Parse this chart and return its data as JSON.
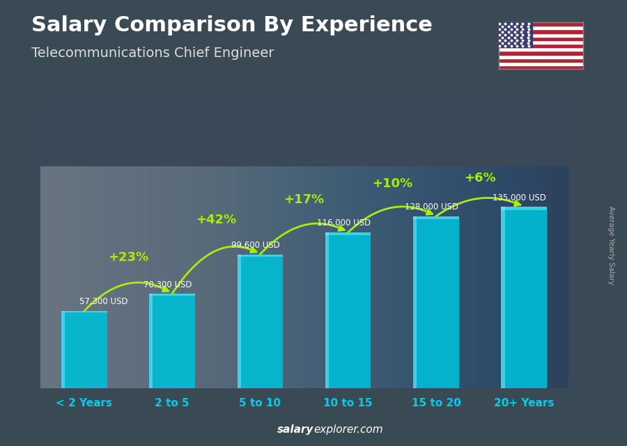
{
  "title": "Salary Comparison By Experience",
  "subtitle": "Telecommunications Chief Engineer",
  "categories": [
    "< 2 Years",
    "2 to 5",
    "5 to 10",
    "10 to 15",
    "15 to 20",
    "20+ Years"
  ],
  "values": [
    57300,
    70300,
    99600,
    116000,
    128000,
    135000
  ],
  "salary_labels": [
    "57,300 USD",
    "70,300 USD",
    "99,600 USD",
    "116,000 USD",
    "128,000 USD",
    "135,000 USD"
  ],
  "pct_changes": [
    "+23%",
    "+42%",
    "+17%",
    "+10%",
    "+6%"
  ],
  "bar_color": "#00bcd4",
  "bar_highlight": "#40d8f0",
  "background_color": "#3a4a55",
  "title_color": "#ffffff",
  "subtitle_color": "#dddddd",
  "salary_label_color": "#ffffff",
  "pct_color": "#aaee00",
  "xtick_color": "#00ccee",
  "watermark_bold": "salary",
  "watermark_normal": "explorer.com",
  "ylabel_text": "Average Yearly Salary",
  "ylabel_color": "#aaaaaa",
  "figsize": [
    9.0,
    6.41
  ],
  "dpi": 100,
  "flag_stripes": [
    "#B22234",
    "#FFFFFF",
    "#B22234",
    "#FFFFFF",
    "#B22234",
    "#FFFFFF",
    "#B22234",
    "#FFFFFF",
    "#B22234",
    "#FFFFFF",
    "#B22234",
    "#FFFFFF",
    "#B22234"
  ],
  "flag_canton": "#3C3B6E"
}
